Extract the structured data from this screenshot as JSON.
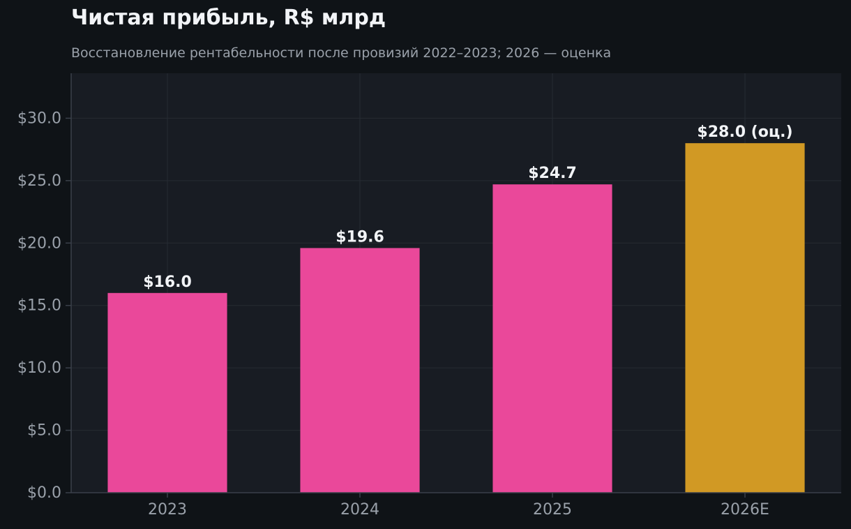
{
  "chart_data": {
    "type": "bar",
    "title": "Чистая прибыль, R$ млрд",
    "subtitle": "Восстановление рентабельности после провизий 2022–2023; 2026 — оценка",
    "categories": [
      "2023",
      "2024",
      "2025",
      "2026E"
    ],
    "values": [
      16.0,
      19.6,
      24.7,
      28.0
    ],
    "value_labels": [
      "$16.0",
      "$19.6",
      "$24.7",
      "$28.0 (оц.)"
    ],
    "estimate": [
      false,
      false,
      false,
      true
    ],
    "y_ticks": [
      0,
      5,
      10,
      15,
      20,
      25,
      30
    ],
    "y_tick_labels": [
      "$0.0",
      "$5.0",
      "$10.0",
      "$15.0",
      "$20.0",
      "$25.0",
      "$30.0"
    ],
    "ylim": [
      0,
      33.6
    ],
    "xlabel": "",
    "ylabel": "",
    "grid": true,
    "colors": {
      "actual": "#ea489a",
      "estimate": "#d19924",
      "plot_bg": "#181c23",
      "page_bg": "#0f1317",
      "grid": "#262b33",
      "axis": "#3a404a",
      "tick_text": "#9aa1aa",
      "label_text": "#f2f4f7"
    }
  }
}
